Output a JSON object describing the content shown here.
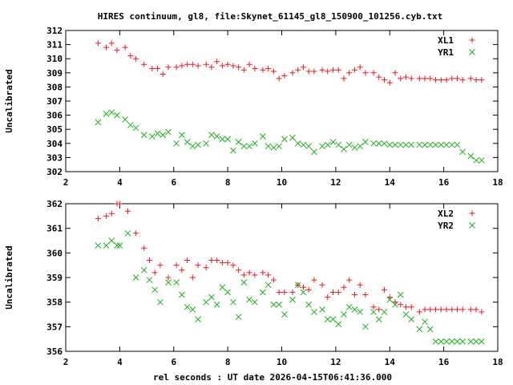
{
  "title": "HIRES continuum, gl8, file:Skynet_61145_gl8_150900_101256.cyb.txt",
  "xlabel": "rel seconds : UT date 2026-04-15T06:41:36.000",
  "colors": {
    "red": "#e8191f",
    "green": "#1fae1f"
  },
  "chart_data": [
    {
      "type": "scatter",
      "ylabel": "Uncalibrated",
      "xlim": [
        2,
        18
      ],
      "ylim": [
        302,
        312
      ],
      "xticks": [
        2,
        4,
        6,
        8,
        10,
        12,
        14,
        16,
        18
      ],
      "yticks": [
        302,
        303,
        304,
        305,
        306,
        307,
        308,
        309,
        310,
        311,
        312
      ],
      "grid": false,
      "legend_position": "top-right",
      "x": [
        3.2,
        3.5,
        3.7,
        3.9,
        4.2,
        4.4,
        4.6,
        4.9,
        5.2,
        5.4,
        5.6,
        5.8,
        6.1,
        6.3,
        6.5,
        6.7,
        6.9,
        7.2,
        7.4,
        7.6,
        7.8,
        8.0,
        8.2,
        8.4,
        8.6,
        8.8,
        9.0,
        9.3,
        9.5,
        9.7,
        9.9,
        10.1,
        10.4,
        10.6,
        10.8,
        11.0,
        11.2,
        11.5,
        11.7,
        11.9,
        12.1,
        12.3,
        12.5,
        12.7,
        12.9,
        13.1,
        13.4,
        13.6,
        13.8,
        14.0,
        14.2,
        14.4,
        14.6,
        14.8,
        15.1,
        15.3,
        15.5,
        15.7,
        15.9,
        16.1,
        16.3,
        16.5,
        16.7,
        17.0,
        17.2,
        17.4
      ],
      "series": [
        {
          "name": "XL1",
          "marker": "+",
          "color": "#e8191f",
          "values": [
            311.1,
            310.8,
            311.1,
            310.6,
            310.8,
            310.2,
            310.0,
            309.6,
            309.3,
            309.3,
            308.9,
            309.4,
            309.4,
            309.5,
            309.6,
            309.6,
            309.5,
            309.6,
            309.4,
            309.8,
            309.5,
            309.6,
            309.5,
            309.4,
            309.2,
            309.6,
            309.3,
            309.2,
            309.3,
            309.1,
            308.6,
            308.8,
            309.0,
            309.2,
            309.4,
            309.1,
            309.1,
            309.2,
            309.1,
            309.2,
            309.2,
            308.6,
            309.0,
            309.2,
            309.4,
            309.0,
            309.0,
            308.7,
            308.5,
            308.3,
            309.0,
            308.6,
            308.7,
            308.6,
            308.6,
            308.6,
            308.6,
            308.5,
            308.5,
            308.5,
            308.6,
            308.6,
            308.5,
            308.6,
            308.5,
            308.5
          ]
        },
        {
          "name": "YR1",
          "marker": "x",
          "color": "#1fae1f",
          "values": [
            305.5,
            306.1,
            306.2,
            306.0,
            305.7,
            305.3,
            305.1,
            304.6,
            304.5,
            304.7,
            304.6,
            304.8,
            304.0,
            304.6,
            304.1,
            303.8,
            303.9,
            304.0,
            304.6,
            304.5,
            304.3,
            304.3,
            303.5,
            304.1,
            303.8,
            303.8,
            304.0,
            304.5,
            303.8,
            303.7,
            303.8,
            304.3,
            304.4,
            304.0,
            303.9,
            303.8,
            303.4,
            303.8,
            303.9,
            304.1,
            303.9,
            303.6,
            303.9,
            303.7,
            303.8,
            304.1,
            304.0,
            304.0,
            304.0,
            303.9,
            303.9,
            303.9,
            303.9,
            303.9,
            303.9,
            303.9,
            303.9,
            303.9,
            303.9,
            303.9,
            303.9,
            303.9,
            303.4,
            303.1,
            302.8,
            302.8
          ]
        }
      ]
    },
    {
      "type": "scatter",
      "ylabel": "Uncalibrated",
      "xlim": [
        2,
        18
      ],
      "ylim": [
        356,
        362
      ],
      "xticks": [
        2,
        4,
        6,
        8,
        10,
        12,
        14,
        16,
        18
      ],
      "yticks": [
        356,
        357,
        358,
        359,
        360,
        361,
        362
      ],
      "grid": false,
      "legend_position": "top-right",
      "x": [
        3.2,
        3.5,
        3.7,
        3.9,
        4.0,
        4.3,
        4.6,
        4.9,
        5.1,
        5.3,
        5.5,
        5.8,
        6.1,
        6.3,
        6.5,
        6.7,
        6.9,
        7.2,
        7.4,
        7.6,
        7.8,
        8.0,
        8.2,
        8.4,
        8.6,
        8.8,
        9.0,
        9.3,
        9.5,
        9.7,
        9.9,
        10.1,
        10.4,
        10.6,
        10.8,
        11.0,
        11.2,
        11.5,
        11.7,
        11.9,
        12.1,
        12.3,
        12.5,
        12.7,
        12.9,
        13.1,
        13.4,
        13.6,
        13.8,
        14.0,
        14.2,
        14.4,
        14.6,
        14.8,
        15.1,
        15.3,
        15.5,
        15.7,
        15.9,
        16.1,
        16.3,
        16.5,
        16.7,
        17.0,
        17.2,
        17.4
      ],
      "series": [
        {
          "name": "XL2",
          "marker": "+",
          "color": "#e8191f",
          "values": [
            361.4,
            361.5,
            361.6,
            362.0,
            362.0,
            361.7,
            360.8,
            360.2,
            359.7,
            359.2,
            359.5,
            359.0,
            359.5,
            359.3,
            359.7,
            359.0,
            359.5,
            359.4,
            359.7,
            359.7,
            359.6,
            359.6,
            359.5,
            359.3,
            359.1,
            359.2,
            359.1,
            359.2,
            359.1,
            358.9,
            358.4,
            358.4,
            358.4,
            358.7,
            358.6,
            358.5,
            358.9,
            358.7,
            358.2,
            358.4,
            358.4,
            358.6,
            358.9,
            358.3,
            358.7,
            358.3,
            357.8,
            357.7,
            358.5,
            358.2,
            358.0,
            357.9,
            357.8,
            357.8,
            357.6,
            357.7,
            357.7,
            357.7,
            357.7,
            357.7,
            357.7,
            357.7,
            357.7,
            357.7,
            357.7,
            357.6
          ]
        },
        {
          "name": "YR2",
          "marker": "x",
          "color": "#1fae1f",
          "values": [
            360.3,
            360.3,
            360.5,
            360.3,
            360.3,
            360.8,
            359.0,
            359.3,
            358.9,
            358.5,
            358.0,
            358.8,
            358.8,
            358.3,
            357.8,
            357.7,
            357.3,
            358.0,
            358.2,
            357.9,
            358.6,
            358.4,
            358.0,
            357.4,
            358.8,
            358.1,
            358.0,
            358.4,
            358.7,
            357.9,
            357.9,
            357.5,
            358.1,
            358.7,
            358.4,
            357.9,
            357.6,
            357.7,
            357.3,
            357.3,
            357.1,
            357.5,
            357.8,
            357.7,
            357.6,
            357.0,
            357.6,
            357.3,
            357.6,
            358.1,
            357.9,
            358.3,
            357.5,
            357.3,
            356.9,
            357.2,
            356.9,
            356.4,
            356.4,
            356.4,
            356.4,
            356.4,
            356.4,
            356.4,
            356.4,
            356.4
          ]
        }
      ]
    }
  ]
}
